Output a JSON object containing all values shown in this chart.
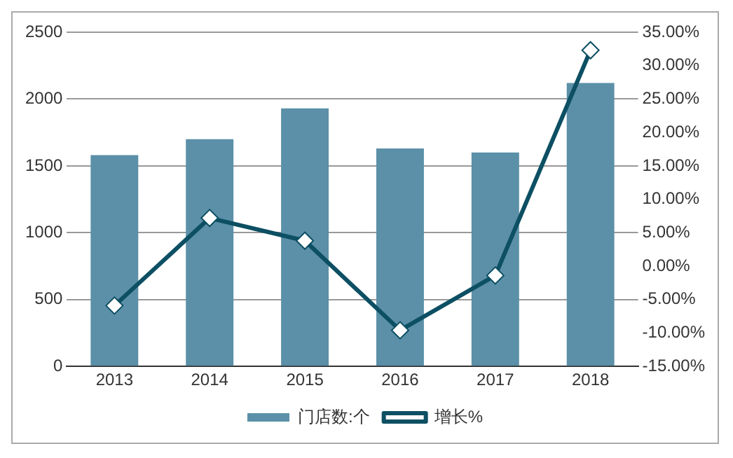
{
  "chart_data": {
    "type": "bar",
    "categories": [
      "2013",
      "2014",
      "2015",
      "2016",
      "2017",
      "2018"
    ],
    "series": [
      {
        "name": "门店数:个",
        "color": "#5b90a8",
        "values": [
          1580,
          1700,
          1930,
          1630,
          1600,
          2120
        ]
      },
      {
        "name": "增长%",
        "type": "line",
        "axis": "y2",
        "color": "#0d4f63",
        "values": [
          -5.9,
          7.2,
          3.8,
          -9.6,
          -1.4,
          32.3
        ]
      }
    ],
    "ylim": [
      0,
      2500
    ],
    "yticks": [
      0,
      500,
      1000,
      1500,
      2000,
      2500
    ],
    "y2lim": [
      -15,
      35
    ],
    "y2ticks": [
      {
        "value": -15,
        "label": "-15.00%"
      },
      {
        "value": -10,
        "label": "-10.00%"
      },
      {
        "value": -5,
        "label": "-5.00%"
      },
      {
        "value": 0,
        "label": "0.00%"
      },
      {
        "value": 5,
        "label": "5.00%"
      },
      {
        "value": 10,
        "label": "10.00%"
      },
      {
        "value": 15,
        "label": "15.00%"
      },
      {
        "value": 20,
        "label": "20.00%"
      },
      {
        "value": 25,
        "label": "25.00%"
      },
      {
        "value": 30,
        "label": "30.00%"
      },
      {
        "value": 35,
        "label": "35.00%"
      }
    ],
    "grid": "y",
    "legend": "bottom",
    "marker": "diamond",
    "line_style": "solid"
  }
}
